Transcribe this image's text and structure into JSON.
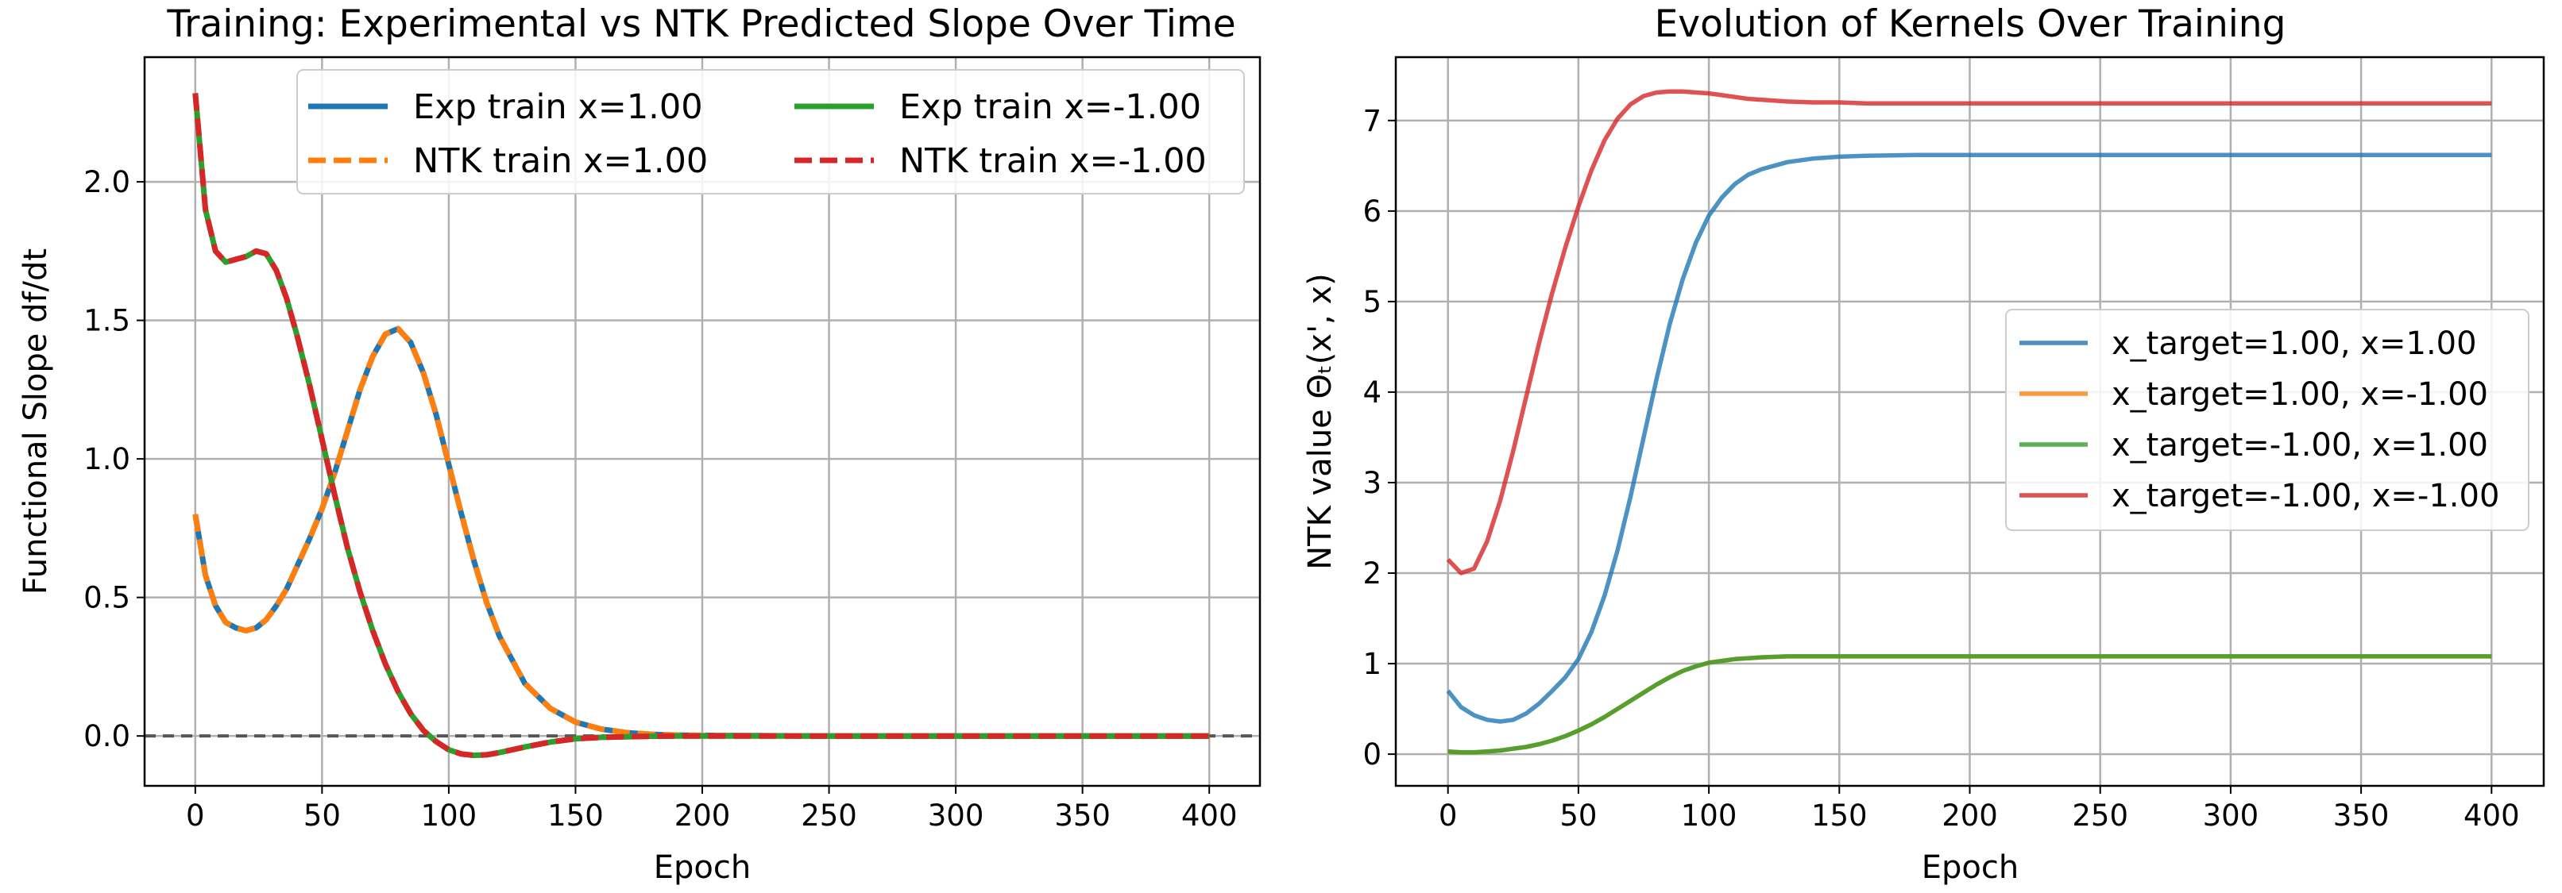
{
  "chart_data": [
    {
      "type": "line",
      "title": "Training: Experimental vs NTK Predicted Slope Over Time",
      "xlabel": "Epoch",
      "ylabel": "Functional Slope df/dt",
      "xlim": [
        -20,
        420
      ],
      "ylim": [
        -0.18,
        2.45
      ],
      "xticks": [
        0,
        50,
        100,
        150,
        200,
        250,
        300,
        350,
        400
      ],
      "yticks": [
        0.0,
        0.5,
        1.0,
        1.5,
        2.0
      ],
      "xtick_labels": [
        "0",
        "50",
        "100",
        "150",
        "200",
        "250",
        "300",
        "350",
        "400"
      ],
      "ytick_labels": [
        "0.0",
        "0.5",
        "1.0",
        "1.5",
        "2.0"
      ],
      "grid": true,
      "reference_line": {
        "y": 0.0,
        "style": "dashed",
        "color": "#555555"
      },
      "legend_position": "upper right, 2 columns",
      "x": [
        0,
        4,
        8,
        12,
        16,
        20,
        24,
        28,
        32,
        36,
        40,
        45,
        50,
        55,
        60,
        65,
        70,
        75,
        80,
        85,
        90,
        95,
        100,
        105,
        110,
        115,
        120,
        130,
        140,
        150,
        160,
        170,
        180,
        190,
        200,
        220,
        250,
        300,
        350,
        400
      ],
      "series": [
        {
          "name": "Exp train x=1.00",
          "color": "#1f77b4",
          "dash": "solid",
          "values": [
            0.8,
            0.58,
            0.47,
            0.41,
            0.39,
            0.38,
            0.39,
            0.42,
            0.47,
            0.53,
            0.61,
            0.71,
            0.82,
            0.95,
            1.1,
            1.25,
            1.37,
            1.45,
            1.47,
            1.42,
            1.31,
            1.16,
            0.98,
            0.8,
            0.63,
            0.48,
            0.36,
            0.19,
            0.1,
            0.05,
            0.025,
            0.012,
            0.006,
            0.003,
            0.002,
            0.001,
            0.0,
            0.0,
            0.0,
            0.0
          ]
        },
        {
          "name": "NTK train x=1.00",
          "color": "#ff7f0e",
          "dash": "dashed",
          "values": [
            0.8,
            0.58,
            0.47,
            0.41,
            0.39,
            0.38,
            0.39,
            0.42,
            0.47,
            0.53,
            0.61,
            0.71,
            0.82,
            0.95,
            1.1,
            1.25,
            1.37,
            1.45,
            1.47,
            1.42,
            1.31,
            1.16,
            0.98,
            0.8,
            0.63,
            0.48,
            0.36,
            0.19,
            0.1,
            0.05,
            0.025,
            0.012,
            0.006,
            0.003,
            0.002,
            0.001,
            0.0,
            0.0,
            0.0,
            0.0
          ]
        },
        {
          "name": "Exp train x=-1.00",
          "color": "#2ca02c",
          "dash": "solid",
          "values": [
            2.32,
            1.9,
            1.75,
            1.71,
            1.72,
            1.73,
            1.75,
            1.74,
            1.68,
            1.58,
            1.45,
            1.27,
            1.07,
            0.87,
            0.68,
            0.52,
            0.38,
            0.26,
            0.16,
            0.08,
            0.02,
            -0.02,
            -0.05,
            -0.065,
            -0.07,
            -0.068,
            -0.06,
            -0.04,
            -0.022,
            -0.01,
            -0.005,
            -0.003,
            -0.001,
            0.0,
            0.0,
            0.0,
            0.0,
            0.0,
            0.0,
            0.0
          ]
        },
        {
          "name": "NTK train x=-1.00",
          "color": "#d62728",
          "dash": "dashed",
          "values": [
            2.32,
            1.9,
            1.75,
            1.71,
            1.72,
            1.73,
            1.75,
            1.74,
            1.68,
            1.58,
            1.45,
            1.27,
            1.07,
            0.87,
            0.68,
            0.52,
            0.38,
            0.26,
            0.16,
            0.08,
            0.02,
            -0.02,
            -0.05,
            -0.065,
            -0.07,
            -0.068,
            -0.06,
            -0.04,
            -0.022,
            -0.01,
            -0.005,
            -0.003,
            -0.001,
            0.0,
            0.0,
            0.0,
            0.0,
            0.0,
            0.0,
            0.0
          ]
        }
      ]
    },
    {
      "type": "line",
      "title": "Evolution of Kernels Over Training",
      "xlabel": "Epoch",
      "ylabel": "NTK value  Θₜ(x', x)",
      "xlim": [
        -20,
        420
      ],
      "ylim": [
        -0.35,
        7.7
      ],
      "xticks": [
        0,
        50,
        100,
        150,
        200,
        250,
        300,
        350,
        400
      ],
      "yticks": [
        0,
        1,
        2,
        3,
        4,
        5,
        6,
        7
      ],
      "xtick_labels": [
        "0",
        "50",
        "100",
        "150",
        "200",
        "250",
        "300",
        "350",
        "400"
      ],
      "ytick_labels": [
        "0",
        "1",
        "2",
        "3",
        "4",
        "5",
        "6",
        "7"
      ],
      "grid": true,
      "legend_position": "center right",
      "x": [
        0,
        5,
        10,
        15,
        20,
        25,
        30,
        35,
        40,
        45,
        50,
        55,
        60,
        65,
        70,
        75,
        80,
        85,
        90,
        95,
        100,
        105,
        110,
        115,
        120,
        130,
        140,
        150,
        160,
        180,
        200,
        250,
        300,
        350,
        400
      ],
      "series": [
        {
          "name": "x_target=1.00, x=1.00",
          "color": "#1f77b4",
          "values": [
            0.7,
            0.52,
            0.43,
            0.38,
            0.36,
            0.38,
            0.45,
            0.56,
            0.7,
            0.85,
            1.05,
            1.35,
            1.75,
            2.25,
            2.85,
            3.5,
            4.15,
            4.75,
            5.25,
            5.65,
            5.95,
            6.15,
            6.3,
            6.4,
            6.46,
            6.54,
            6.58,
            6.6,
            6.61,
            6.62,
            6.62,
            6.62,
            6.62,
            6.62,
            6.62
          ]
        },
        {
          "name": "x_target=1.00, x=-1.00",
          "color": "#ff7f0e",
          "values": [
            0.03,
            0.02,
            0.02,
            0.03,
            0.04,
            0.06,
            0.08,
            0.11,
            0.15,
            0.2,
            0.26,
            0.33,
            0.41,
            0.5,
            0.59,
            0.68,
            0.77,
            0.85,
            0.92,
            0.97,
            1.01,
            1.03,
            1.05,
            1.06,
            1.07,
            1.08,
            1.08,
            1.08,
            1.08,
            1.08,
            1.08,
            1.08,
            1.08,
            1.08,
            1.08
          ]
        },
        {
          "name": "x_target=-1.00, x=1.00",
          "color": "#2ca02c",
          "values": [
            0.03,
            0.02,
            0.02,
            0.03,
            0.04,
            0.06,
            0.08,
            0.11,
            0.15,
            0.2,
            0.26,
            0.33,
            0.41,
            0.5,
            0.59,
            0.68,
            0.77,
            0.85,
            0.92,
            0.97,
            1.01,
            1.03,
            1.05,
            1.06,
            1.07,
            1.08,
            1.08,
            1.08,
            1.08,
            1.08,
            1.08,
            1.08,
            1.08,
            1.08,
            1.08
          ]
        },
        {
          "name": "x_target=-1.00, x=-1.00",
          "color": "#d62728",
          "values": [
            2.15,
            2.0,
            2.05,
            2.35,
            2.8,
            3.35,
            3.95,
            4.55,
            5.1,
            5.6,
            6.05,
            6.45,
            6.78,
            7.02,
            7.18,
            7.27,
            7.31,
            7.32,
            7.32,
            7.31,
            7.3,
            7.28,
            7.26,
            7.24,
            7.23,
            7.21,
            7.2,
            7.2,
            7.19,
            7.19,
            7.19,
            7.19,
            7.19,
            7.19,
            7.19
          ]
        }
      ]
    }
  ]
}
